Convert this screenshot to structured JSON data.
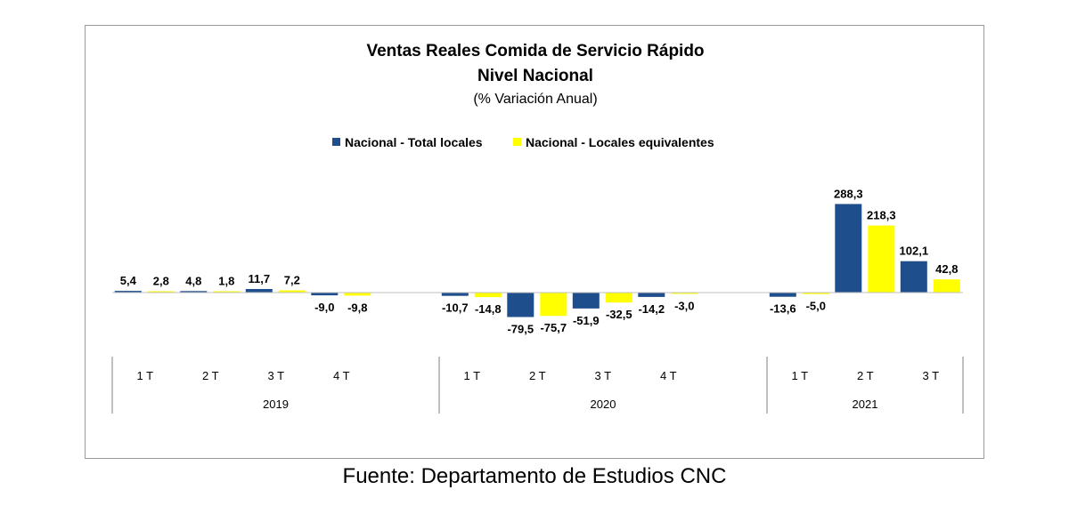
{
  "chart_data": {
    "type": "bar",
    "title_lines": [
      "Ventas Reales Comida de Servicio Rápido",
      "Nivel Nacional"
    ],
    "subtitle": "(% Variación Anual)",
    "legend_placement": "top-center",
    "grid": false,
    "ylim": [
      -100,
      330
    ],
    "groups": [
      {
        "label": "2019",
        "quarters": [
          "1 T",
          "2 T",
          "3 T",
          "4 T"
        ]
      },
      {
        "label": "2020",
        "quarters": [
          "1 T",
          "2 T",
          "3 T",
          "4 T"
        ]
      },
      {
        "label": "2021",
        "quarters": [
          "1 T",
          "2 T",
          "3 T"
        ]
      }
    ],
    "series": [
      {
        "name": "Nacional - Total locales",
        "color": "#1f4e8c",
        "values": [
          5.4,
          4.8,
          11.7,
          -9.0,
          -10.7,
          -79.5,
          -51.9,
          -14.2,
          -13.6,
          288.3,
          102.1
        ],
        "labels": [
          "5,4",
          "4,8",
          "11,7",
          "-9,0",
          "-10,7",
          "-79,5",
          "-51,9",
          "-14,2",
          "-13,6",
          "288,3",
          "102,1"
        ]
      },
      {
        "name": "Nacional - Locales equivalentes",
        "color": "#ffff00",
        "values": [
          2.8,
          1.8,
          7.2,
          -9.8,
          -14.8,
          -75.7,
          -32.5,
          -3.0,
          -5.0,
          218.3,
          42.8
        ],
        "labels": [
          "2,8",
          "1,8",
          "7,2",
          "-9,8",
          "-14,8",
          "-75,7",
          "-32,5",
          "-3,0",
          "-5,0",
          "218,3",
          "42,8"
        ]
      }
    ]
  },
  "source_note": "Fuente: Departamento de Estudios CNC"
}
